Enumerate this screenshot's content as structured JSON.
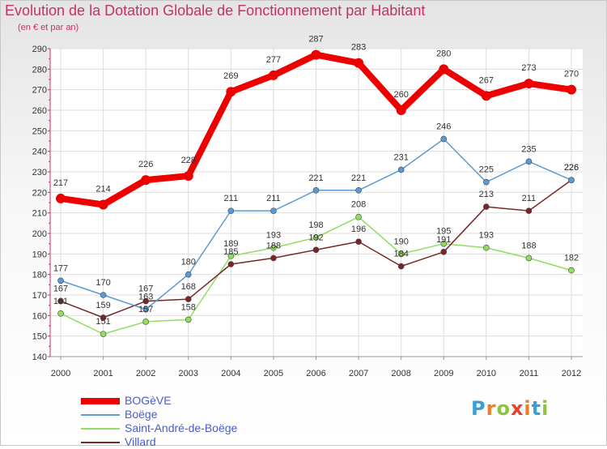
{
  "header": {
    "title": "Evolution de la Dotation Globale de Fonctionnement par Habitant",
    "subtitle": "(en € et par an)"
  },
  "logo": {
    "letters": [
      "P",
      "r",
      "o",
      "x",
      "i",
      "t",
      "i"
    ],
    "colors": [
      "#3a9fd8",
      "#f07d1f",
      "#8cc63f",
      "#e8422c",
      "#f07d1f",
      "#3a9fd8",
      "#8cc63f"
    ]
  },
  "chart_data": {
    "type": "line",
    "x": [
      "2000",
      "2001",
      "2002",
      "2003",
      "2004",
      "2005",
      "2006",
      "2007",
      "2008",
      "2009",
      "2010",
      "2011",
      "2012"
    ],
    "ylim": [
      140,
      290
    ],
    "yticks": [
      140,
      150,
      160,
      170,
      180,
      190,
      200,
      210,
      220,
      230,
      240,
      250,
      260,
      270,
      280,
      290
    ],
    "grid": true,
    "legend": "bottom-left",
    "series": [
      {
        "name": "BOGèVE",
        "color": "#ee0000",
        "values": [
          217,
          214,
          226,
          228,
          269,
          277,
          287,
          283,
          260,
          280,
          267,
          273,
          270
        ]
      },
      {
        "name": "Boëge",
        "color": "#5b9bd5",
        "values": [
          177,
          170,
          163,
          180,
          211,
          211,
          221,
          221,
          231,
          246,
          225,
          235,
          226
        ]
      },
      {
        "name": "Saint-André-de-Boëge",
        "color": "#90dd60",
        "values": [
          161,
          151,
          157,
          158,
          189,
          193,
          198,
          208,
          190,
          195,
          193,
          188,
          182
        ]
      },
      {
        "name": "Villard",
        "color": "#7a2626",
        "values": [
          167,
          159,
          167,
          168,
          185,
          188,
          192,
          196,
          184,
          191,
          213,
          211,
          226
        ]
      }
    ]
  }
}
